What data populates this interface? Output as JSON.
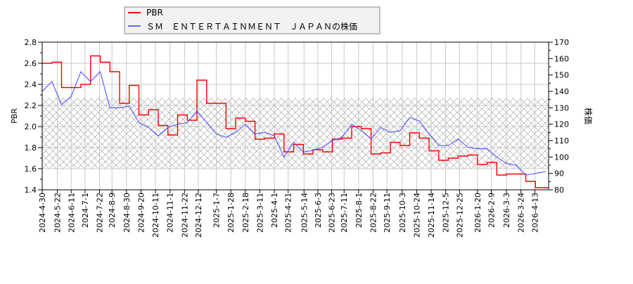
{
  "chart_data": {
    "type": "line",
    "title": "",
    "legend": {
      "placement": "top-center",
      "entries": [
        {
          "label": "PBR",
          "color": "#ff0000"
        },
        {
          "label": "ＳＭ　ＥＮＴＥＲＴＡＩＮＭＥＮＴ　ＪＡＰＡＮの株価",
          "color": "#4444ff"
        }
      ]
    },
    "ylabel_left": "PBR",
    "ylabel_right": "株価",
    "ylim_left": [
      1.4,
      2.8
    ],
    "ylim_right": [
      80,
      170
    ],
    "yticks_left": [
      "1.4",
      "1.6",
      "1.8",
      "2.0",
      "2.2",
      "2.4",
      "2.6",
      "2.8"
    ],
    "yticks_right": [
      "80",
      "90",
      "100",
      "110",
      "120",
      "130",
      "140",
      "150",
      "160",
      "170"
    ],
    "xlim": [
      "2024-04-30",
      "2026-05-03"
    ],
    "xticks": [
      "2024-4-30",
      "2024-5-22",
      "2024-6-11",
      "2024-7-1",
      "2024-7-22",
      "2024-8-9",
      "2024-8-30",
      "2024-9-20",
      "2024-10-11",
      "2024-11-1",
      "2024-11-22",
      "2024-12-12",
      "2025-1-7",
      "2025-1-28",
      "2025-2-18",
      "2025-3-11",
      "2025-4-1",
      "2025-4-21",
      "2025-5-14",
      "2025-6-3",
      "2025-6-23",
      "2025-7-11",
      "2025-8-1",
      "2025-8-22",
      "2025-9-11",
      "2025-10-3",
      "2025-10-24",
      "2025-11-14",
      "2025-12-5",
      "2025-12-25",
      "2026-1-20",
      "2026-2-9",
      "2026-3-3",
      "2026-3-24",
      "2026-4-13"
    ],
    "grid": true,
    "shaded_band_left": [
      1.6,
      2.27
    ],
    "x": [
      "2024-04-30",
      "2024-05-14",
      "2024-05-28",
      "2024-06-11",
      "2024-06-25",
      "2024-07-09",
      "2024-07-23",
      "2024-08-06",
      "2024-08-20",
      "2024-09-03",
      "2024-09-17",
      "2024-10-01",
      "2024-10-15",
      "2024-10-29",
      "2024-11-12",
      "2024-11-26",
      "2024-12-10",
      "2024-12-24",
      "2025-01-07",
      "2025-01-21",
      "2025-02-04",
      "2025-02-18",
      "2025-03-04",
      "2025-03-18",
      "2025-04-01",
      "2025-04-15",
      "2025-04-29",
      "2025-05-13",
      "2025-05-27",
      "2025-06-10",
      "2025-06-24",
      "2025-07-08",
      "2025-07-22",
      "2025-08-05",
      "2025-08-19",
      "2025-09-02",
      "2025-09-16",
      "2025-09-30",
      "2025-10-14",
      "2025-10-28",
      "2025-11-11",
      "2025-11-25",
      "2025-12-09",
      "2025-12-23",
      "2026-01-06",
      "2026-01-20",
      "2026-02-03",
      "2026-02-17",
      "2026-03-03",
      "2026-03-17",
      "2026-03-31",
      "2026-04-14",
      "2026-04-28"
    ],
    "series": [
      {
        "name": "PBR",
        "axis": "left",
        "color": "#ff0000",
        "step": true,
        "values": [
          2.6,
          2.61,
          2.37,
          2.37,
          2.4,
          2.67,
          2.61,
          2.52,
          2.22,
          2.39,
          2.11,
          2.16,
          2.01,
          1.92,
          2.11,
          2.06,
          2.44,
          2.22,
          2.22,
          1.98,
          2.08,
          2.05,
          1.88,
          1.89,
          1.93,
          1.76,
          1.83,
          1.74,
          1.78,
          1.76,
          1.88,
          1.89,
          2.0,
          1.98,
          1.74,
          1.75,
          1.85,
          1.82,
          1.94,
          1.89,
          1.77,
          1.68,
          1.7,
          1.72,
          1.73,
          1.64,
          1.66,
          1.54,
          1.55,
          1.55,
          1.48,
          1.42,
          1.42
        ]
      },
      {
        "name": "ＳＭ　ＥＮＴＥＲＴＡＩＮＭＥＮＴ　ＪＡＰＡＮの株価",
        "axis": "right",
        "color": "#4444ff",
        "step": false,
        "values": [
          140,
          146,
          132,
          137,
          152,
          146,
          152,
          130,
          130,
          131,
          121,
          118,
          113,
          118,
          120,
          121,
          128,
          121,
          114,
          112,
          115,
          120,
          114,
          115,
          113,
          100,
          109,
          103,
          104,
          106,
          110,
          112,
          120,
          116,
          111,
          118,
          115,
          116,
          124,
          122,
          114,
          107,
          107,
          111,
          106,
          105,
          105,
          100,
          96,
          95,
          89,
          90,
          91
        ]
      }
    ]
  }
}
